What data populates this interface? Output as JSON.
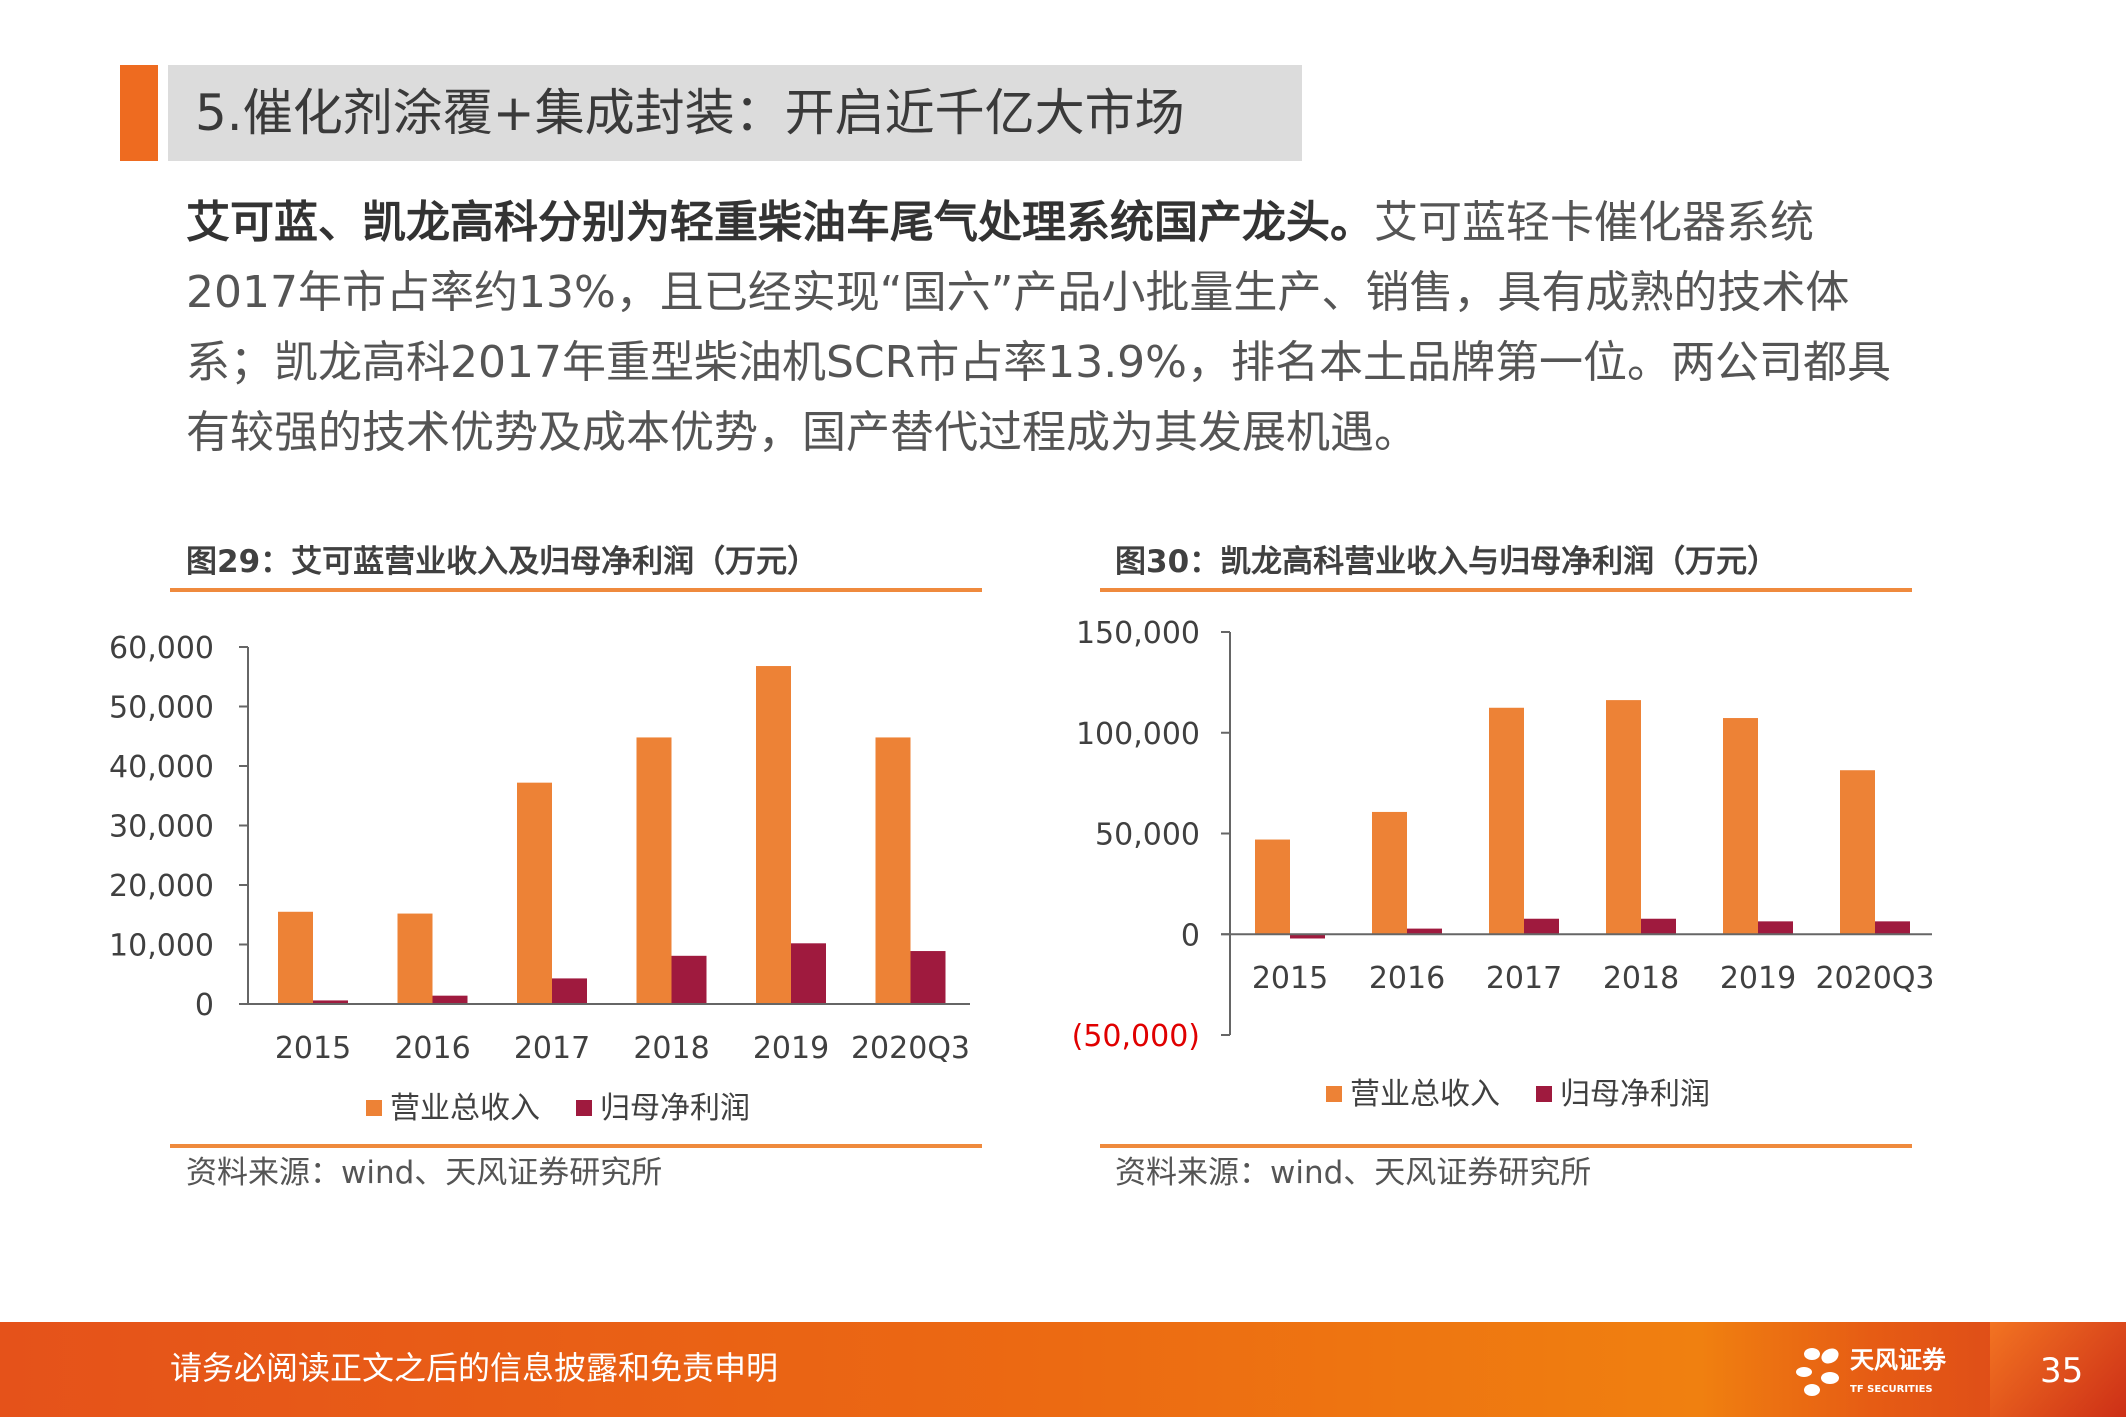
{
  "header": {
    "title": "5.催化剂涂覆+集成封装：开启近千亿大市场"
  },
  "body": {
    "lead_bold": "艾可蓝、凯龙高科分别为轻重柴油车尾气处理系统国产龙头。",
    "text": "艾可蓝轻卡催化器系统2017年市占率约13%，且已经实现“国六”产品小批量生产、销售，具有成熟的技术体系；凯龙高科2017年重型柴油机SCR市占率13.9%，排名本土品牌第一位。两公司都具有较强的技术优势及成本优势，国产替代过程成为其发展机遇。"
  },
  "colors": {
    "revenue": "#ed8236",
    "profit": "#9f1a3e",
    "accent": "#ee6b20",
    "negative_tick": "#e00000"
  },
  "chart_data": [
    {
      "type": "bar",
      "title": "图29：艾可蓝营业收入及归母净利润（万元）",
      "categories": [
        "2015",
        "2016",
        "2017",
        "2018",
        "2019",
        "2020Q3"
      ],
      "series": [
        {
          "name": "营业总收入",
          "values": [
            15500,
            15200,
            37200,
            44800,
            56800,
            44800
          ]
        },
        {
          "name": "归母净利润",
          "values": [
            600,
            1400,
            4300,
            8100,
            10200,
            8900
          ]
        }
      ],
      "yticks": [
        "0",
        "10,000",
        "20,000",
        "30,000",
        "40,000",
        "50,000",
        "60,000"
      ],
      "ytick_values": [
        0,
        10000,
        20000,
        30000,
        40000,
        50000,
        60000
      ],
      "ylim": [
        0,
        60000
      ],
      "legend": "bottom",
      "grid": false,
      "source": "资料来源：wind、天风证券研究所"
    },
    {
      "type": "bar",
      "title": "图30：凯龙高科营业收入与归母净利润（万元）",
      "categories": [
        "2015",
        "2016",
        "2017",
        "2018",
        "2019",
        "2020Q3"
      ],
      "series": [
        {
          "name": "营业总收入",
          "values": [
            47000,
            60700,
            112400,
            116200,
            107300,
            81400
          ]
        },
        {
          "name": "归母净利润",
          "values": [
            -2100,
            2800,
            7700,
            7700,
            6400,
            6400
          ]
        }
      ],
      "yticks": [
        "(50,000)",
        "0",
        "50,000",
        "100,000",
        "150,000"
      ],
      "ytick_values": [
        -50000,
        0,
        50000,
        100000,
        150000
      ],
      "ylim": [
        -50000,
        150000
      ],
      "legend": "bottom",
      "grid": false,
      "source": "资料来源：wind、天风证券研究所"
    }
  ],
  "footer": {
    "disclaimer": "请务必阅读正文之后的信息披露和免责申明",
    "logo_name": "天风证券",
    "logo_en": "TF SECURITIES",
    "page": "35"
  }
}
